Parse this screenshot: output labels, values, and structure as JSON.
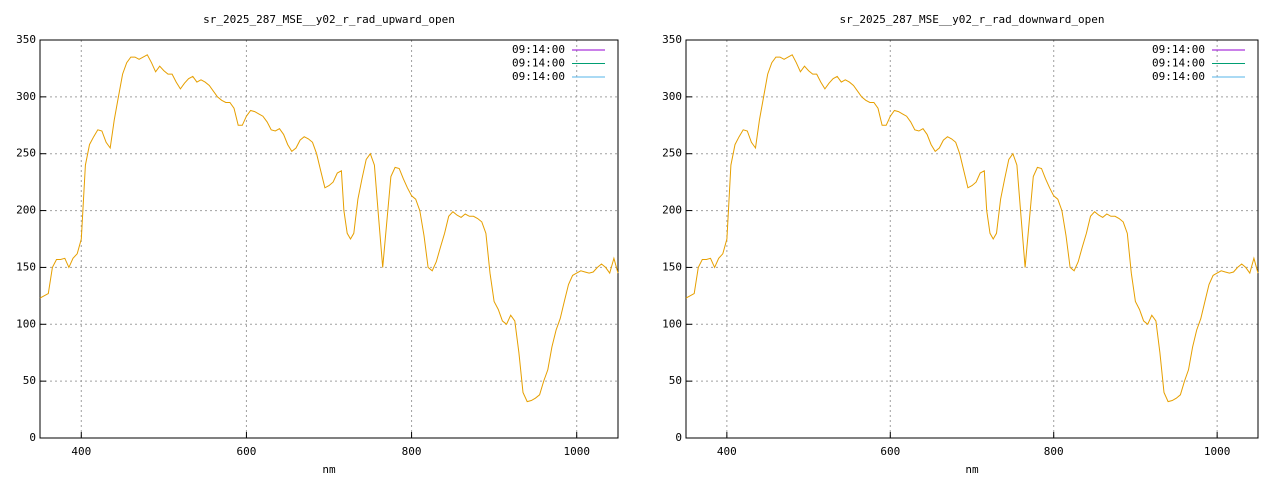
{
  "chart_data": [
    {
      "type": "line",
      "title": "sr_2025_287_MSE__y02_r_rad_upward_open",
      "xlabel": "nm",
      "xlim": [
        350,
        1050
      ],
      "xticks": [
        400,
        600,
        800,
        1000
      ],
      "ylim": [
        0,
        350
      ],
      "yticks": [
        0,
        50,
        100,
        150,
        200,
        250,
        300,
        350
      ],
      "grid": true,
      "legend": "top-right",
      "series": [
        {
          "name": "09:14:00",
          "color": "#9400d3"
        },
        {
          "name": "09:14:00",
          "color": "#009e73"
        },
        {
          "name": "09:14:00",
          "color": "#56b4e9"
        }
      ],
      "color": "#e69f00",
      "x": [
        350,
        360,
        365,
        370,
        375,
        380,
        385,
        390,
        395,
        400,
        405,
        410,
        415,
        420,
        425,
        430,
        435,
        440,
        445,
        450,
        455,
        460,
        465,
        470,
        475,
        480,
        485,
        490,
        495,
        500,
        505,
        510,
        515,
        520,
        525,
        530,
        535,
        540,
        545,
        550,
        555,
        560,
        565,
        570,
        575,
        580,
        585,
        590,
        595,
        600,
        605,
        610,
        615,
        620,
        625,
        630,
        635,
        640,
        645,
        650,
        655,
        660,
        665,
        670,
        675,
        680,
        685,
        690,
        695,
        700,
        705,
        710,
        715,
        718,
        722,
        726,
        730,
        735,
        740,
        745,
        750,
        755,
        760,
        765,
        770,
        775,
        780,
        785,
        790,
        795,
        800,
        805,
        810,
        815,
        820,
        825,
        830,
        835,
        840,
        845,
        850,
        855,
        860,
        865,
        870,
        875,
        880,
        885,
        890,
        895,
        900,
        905,
        910,
        915,
        920,
        925,
        930,
        935,
        940,
        945,
        950,
        955,
        960,
        965,
        970,
        975,
        980,
        985,
        990,
        995,
        1000,
        1005,
        1010,
        1015,
        1020,
        1025,
        1030,
        1035,
        1040,
        1045,
        1050
      ],
      "values": [
        123,
        127,
        150,
        157,
        157,
        158,
        150,
        158,
        162,
        175,
        240,
        258,
        265,
        271,
        270,
        260,
        255,
        280,
        300,
        320,
        330,
        335,
        335,
        333,
        335,
        337,
        330,
        322,
        327,
        323,
        320,
        320,
        313,
        307,
        312,
        316,
        318,
        313,
        315,
        313,
        310,
        305,
        300,
        297,
        295,
        295,
        290,
        275,
        275,
        283,
        288,
        287,
        285,
        283,
        278,
        271,
        270,
        272,
        267,
        258,
        252,
        255,
        262,
        265,
        263,
        260,
        250,
        235,
        220,
        222,
        225,
        233,
        235,
        200,
        180,
        175,
        180,
        210,
        228,
        245,
        250,
        240,
        195,
        150,
        190,
        230,
        238,
        237,
        228,
        220,
        213,
        210,
        200,
        178,
        150,
        147,
        155,
        168,
        180,
        195,
        199,
        196,
        194,
        197,
        195,
        195,
        193,
        190,
        180,
        145,
        120,
        113,
        103,
        100,
        108,
        103,
        75,
        40,
        32,
        33,
        35,
        38,
        50,
        60,
        80,
        95,
        105,
        120,
        135,
        143,
        145,
        147,
        146,
        145,
        146,
        150,
        153,
        150,
        145,
        158,
        145
      ]
    },
    {
      "type": "line",
      "title": "sr_2025_287_MSE__y02_r_rad_downward_open",
      "xlabel": "nm",
      "xlim": [
        350,
        1050
      ],
      "xticks": [
        400,
        600,
        800,
        1000
      ],
      "ylim": [
        0,
        350
      ],
      "yticks": [
        0,
        50,
        100,
        150,
        200,
        250,
        300,
        350
      ],
      "grid": true,
      "legend": "top-right",
      "series": [
        {
          "name": "09:14:00",
          "color": "#9400d3"
        },
        {
          "name": "09:14:00",
          "color": "#009e73"
        },
        {
          "name": "09:14:00",
          "color": "#56b4e9"
        }
      ],
      "color": "#e69f00",
      "x": [
        350,
        360,
        365,
        370,
        375,
        380,
        385,
        390,
        395,
        400,
        405,
        410,
        415,
        420,
        425,
        430,
        435,
        440,
        445,
        450,
        455,
        460,
        465,
        470,
        475,
        480,
        485,
        490,
        495,
        500,
        505,
        510,
        515,
        520,
        525,
        530,
        535,
        540,
        545,
        550,
        555,
        560,
        565,
        570,
        575,
        580,
        585,
        590,
        595,
        600,
        605,
        610,
        615,
        620,
        625,
        630,
        635,
        640,
        645,
        650,
        655,
        660,
        665,
        670,
        675,
        680,
        685,
        690,
        695,
        700,
        705,
        710,
        715,
        718,
        722,
        726,
        730,
        735,
        740,
        745,
        750,
        755,
        760,
        765,
        770,
        775,
        780,
        785,
        790,
        795,
        800,
        805,
        810,
        815,
        820,
        825,
        830,
        835,
        840,
        845,
        850,
        855,
        860,
        865,
        870,
        875,
        880,
        885,
        890,
        895,
        900,
        905,
        910,
        915,
        920,
        925,
        930,
        935,
        940,
        945,
        950,
        955,
        960,
        965,
        970,
        975,
        980,
        985,
        990,
        995,
        1000,
        1005,
        1010,
        1015,
        1020,
        1025,
        1030,
        1035,
        1040,
        1045,
        1050
      ],
      "values": [
        123,
        127,
        150,
        157,
        157,
        158,
        150,
        158,
        162,
        175,
        240,
        258,
        265,
        271,
        270,
        260,
        255,
        280,
        300,
        320,
        330,
        335,
        335,
        333,
        335,
        337,
        330,
        322,
        327,
        323,
        320,
        320,
        313,
        307,
        312,
        316,
        318,
        313,
        315,
        313,
        310,
        305,
        300,
        297,
        295,
        295,
        290,
        275,
        275,
        283,
        288,
        287,
        285,
        283,
        278,
        271,
        270,
        272,
        267,
        258,
        252,
        255,
        262,
        265,
        263,
        260,
        250,
        235,
        220,
        222,
        225,
        233,
        235,
        200,
        180,
        175,
        180,
        210,
        228,
        245,
        250,
        240,
        195,
        150,
        190,
        230,
        238,
        237,
        228,
        220,
        213,
        210,
        200,
        178,
        150,
        147,
        155,
        168,
        180,
        195,
        199,
        196,
        194,
        197,
        195,
        195,
        193,
        190,
        180,
        145,
        120,
        113,
        103,
        100,
        108,
        103,
        75,
        40,
        32,
        33,
        35,
        38,
        50,
        60,
        80,
        95,
        105,
        120,
        135,
        143,
        145,
        147,
        146,
        145,
        146,
        150,
        153,
        150,
        145,
        158,
        145
      ]
    }
  ]
}
